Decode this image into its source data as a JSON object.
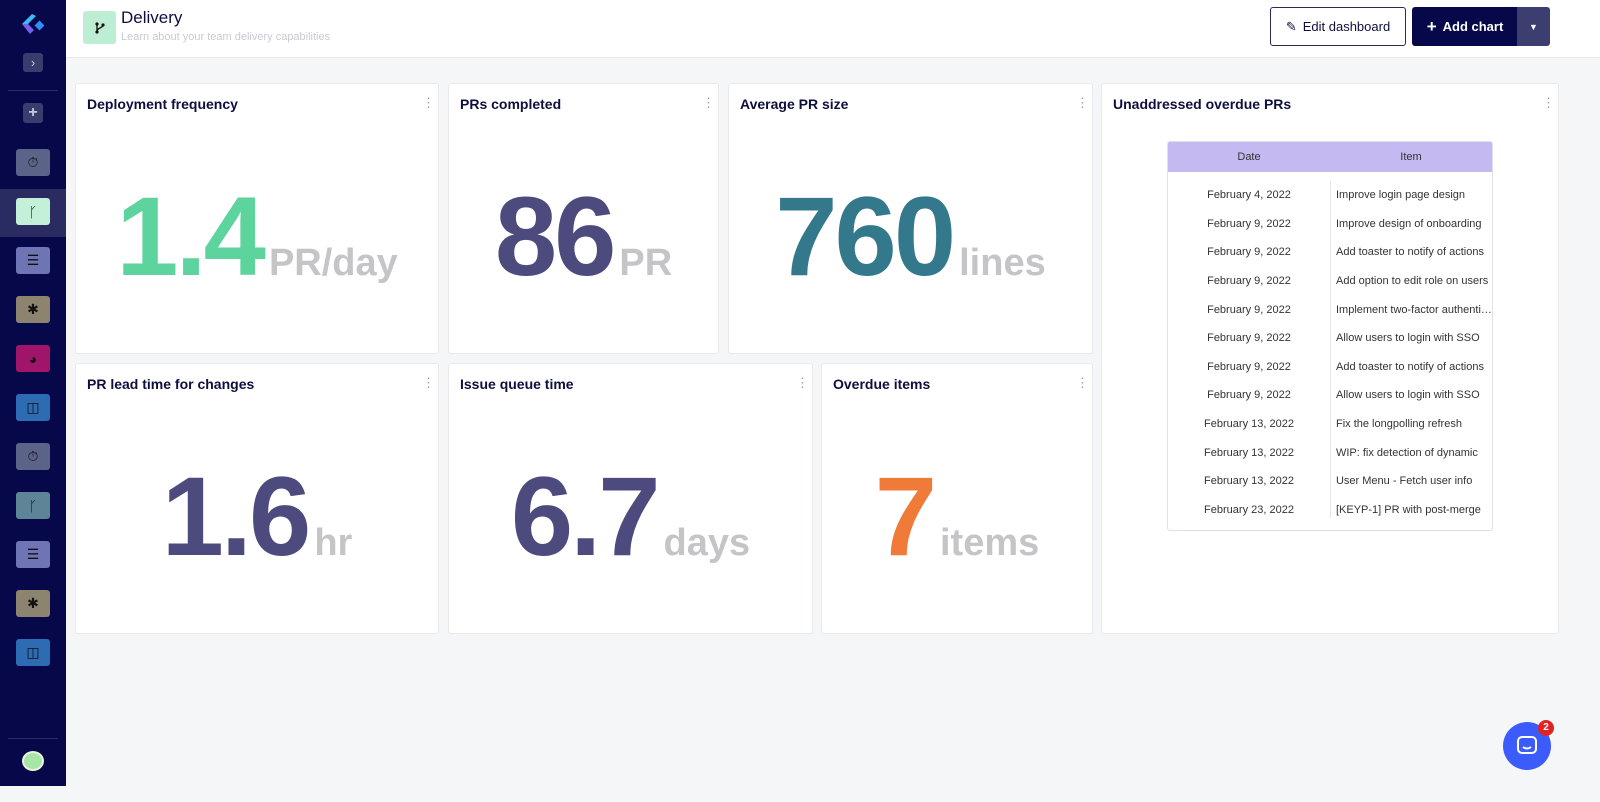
{
  "header": {
    "title": "Delivery",
    "subtitle": "Learn about your team delivery capabilities",
    "edit_label": "Edit dashboard",
    "add_label": "Add chart"
  },
  "sidebar": {
    "items": [
      {
        "icon": "stopwatch-icon",
        "color": "#5c6389"
      },
      {
        "icon": "git-branch-icon",
        "color": "#c4f0d9",
        "active": true
      },
      {
        "icon": "checklist-icon",
        "color": "#6f74b5"
      },
      {
        "icon": "bug-icon",
        "color": "#8d8470"
      },
      {
        "icon": "pie-chart-icon",
        "color": "#a0146a"
      },
      {
        "icon": "layout-icon",
        "color": "#2d6bb3"
      },
      {
        "icon": "stopwatch-icon",
        "color": "#5c6389"
      },
      {
        "icon": "git-branch-icon",
        "color": "#5e8597"
      },
      {
        "icon": "checklist-icon",
        "color": "#6f74b5"
      },
      {
        "icon": "bug-icon",
        "color": "#8d8470"
      },
      {
        "icon": "layout-icon",
        "color": "#2d6bb3"
      }
    ]
  },
  "cards": {
    "deploy": {
      "title": "Deployment frequency",
      "value": "1.4",
      "unit": "PR/day",
      "color": "#5dd39e"
    },
    "prs": {
      "title": "PRs completed",
      "value": "86",
      "unit": "PR",
      "color": "#4d4a7d"
    },
    "size": {
      "title": "Average PR size",
      "value": "760",
      "unit": "lines",
      "color": "#33798b"
    },
    "lead": {
      "title": "PR lead time for changes",
      "value": "1.6",
      "unit": "hr",
      "color": "#4d4a7d"
    },
    "queue": {
      "title": "Issue queue time",
      "value": "6.7",
      "unit": "days",
      "color": "#4d4a7d"
    },
    "overdue": {
      "title": "Overdue items",
      "value": "7",
      "unit": "items",
      "color": "#f07a38"
    }
  },
  "overdue_prs": {
    "title": "Unaddressed overdue PRs",
    "columns": [
      "Date",
      "Item"
    ],
    "rows": [
      [
        "February 4, 2022",
        "Improve login page design"
      ],
      [
        "February 9, 2022",
        "Improve design of onboarding"
      ],
      [
        "February 9, 2022",
        "Add toaster to notify of actions"
      ],
      [
        "February 9, 2022",
        "Add option to edit role on users"
      ],
      [
        "February 9, 2022",
        "Implement two-factor authentication"
      ],
      [
        "February 9, 2022",
        "Allow users to login with SSO"
      ],
      [
        "February 9, 2022",
        "Add toaster to notify of actions"
      ],
      [
        "February 9, 2022",
        "Allow users to login with SSO"
      ],
      [
        "February 13, 2022",
        "Fix the longpolling refresh"
      ],
      [
        "February 13, 2022",
        "WIP: fix detection of dynamic"
      ],
      [
        "February 13, 2022",
        "User Menu - Fetch user info"
      ],
      [
        "February 23, 2022",
        "[KEYP-1] PR with post-merge"
      ]
    ]
  },
  "chat": {
    "badge": "2"
  }
}
